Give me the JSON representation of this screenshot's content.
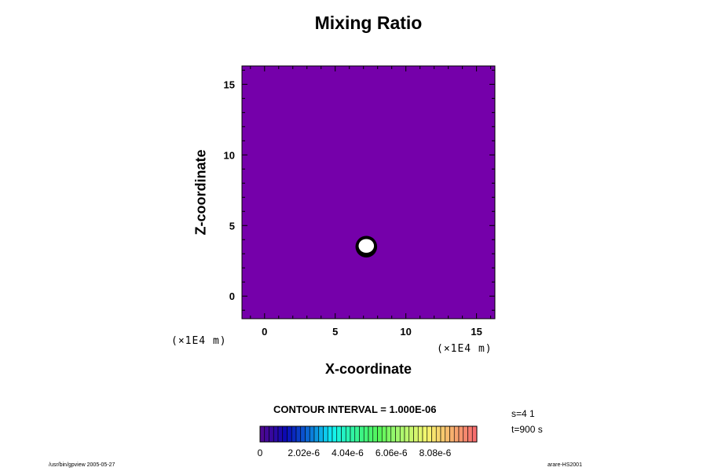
{
  "chart_data": {
    "type": "heatmap",
    "title": "Mixing Ratio",
    "xlabel": "X-coordinate",
    "ylabel": "Z-coordinate",
    "x_unit": "(×1E4 m)",
    "z_unit": "(×1E4 m)",
    "xlim": [
      -1.6,
      16.3
    ],
    "ylim": [
      -1.6,
      16.3
    ],
    "x_ticks": [
      0,
      5,
      10,
      15
    ],
    "y_ticks": [
      0,
      5,
      10,
      15
    ],
    "x_tick_labels": [
      "0",
      "5",
      "10",
      "15"
    ],
    "y_tick_labels": [
      "0",
      "5",
      "10",
      "15"
    ],
    "background_value": 0,
    "background_color": "#7500aa",
    "feature": {
      "description_value": "white blob (above colour scale)",
      "center": [
        7.2,
        3.5
      ],
      "radius": 0.6,
      "color": "#ffffff",
      "outline_color": "#000000"
    },
    "colorbar": {
      "min": 0,
      "max": 1e-05,
      "tick_labels": [
        "0",
        "2.02e-6",
        "4.04e-6",
        "6.06e-6",
        "8.08e-6"
      ],
      "tick_values": [
        0,
        2.02e-06,
        4.04e-06,
        6.06e-06,
        8.08e-06
      ]
    }
  },
  "annotations": {
    "contour_interval": "CONTOUR INTERVAL = 1.000E-06",
    "step": "s=4 1",
    "time": "t=900 s"
  },
  "footer": {
    "left": "/usr/bin/gpview 2005-05-27",
    "right": "arare-HS2001"
  },
  "colors": {
    "plot_fill": "#7500aa",
    "frame": "#000000",
    "background": "#ffffff"
  }
}
